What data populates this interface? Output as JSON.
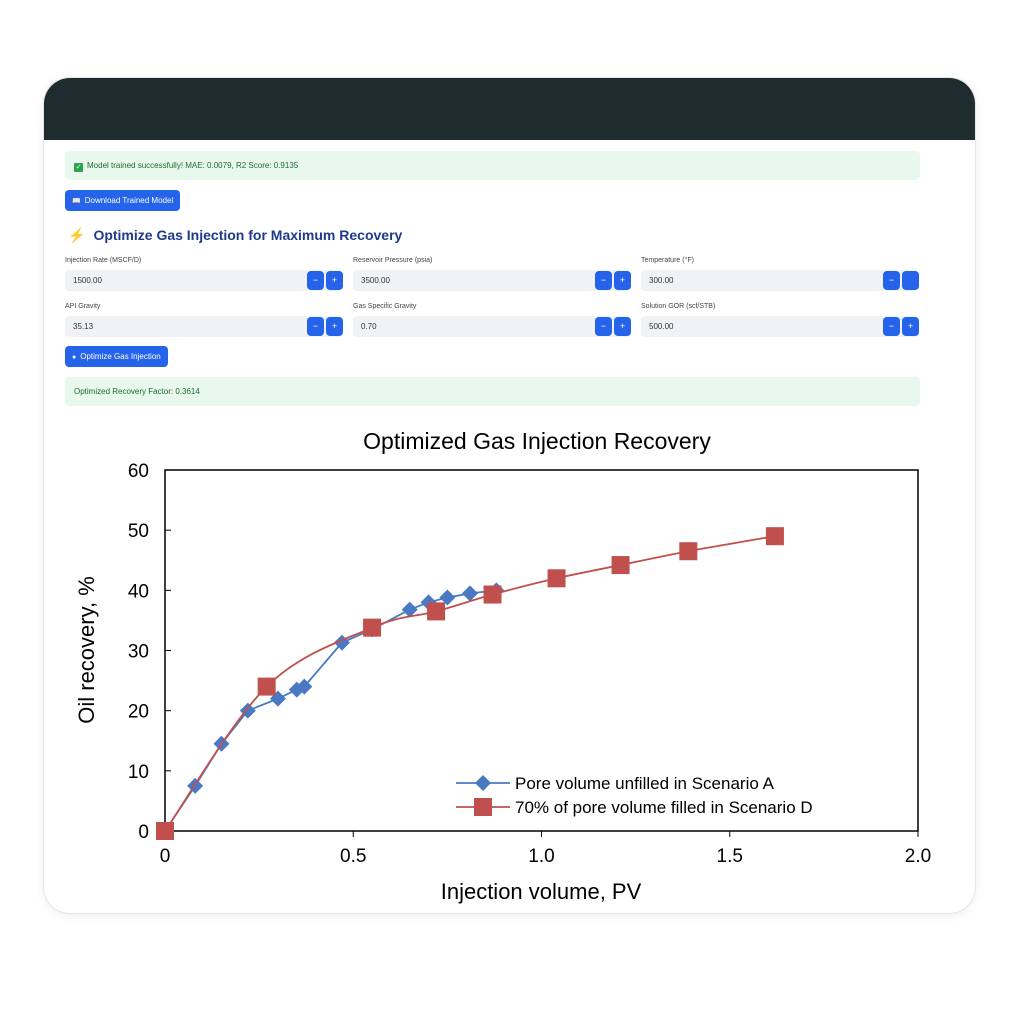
{
  "status": {
    "trained": "Model trained successfully! MAE: 0.0079, R2 Score: 0.9135",
    "check_icon": "✓"
  },
  "download_button": {
    "label": "Download Trained Model",
    "icon": "📖"
  },
  "section": {
    "title": "Optimize Gas Injection for Maximum Recovery",
    "icon": "⚡"
  },
  "inputs": [
    {
      "label": "Injection Rate (MSCF/D)",
      "value": "1500.00"
    },
    {
      "label": "Reservoir Pressure (psia)",
      "value": "3500.00"
    },
    {
      "label": "Temperature (°F)",
      "value": "300.00"
    },
    {
      "label": "API Gravity",
      "value": "35.13"
    },
    {
      "label": "Gas Specific Gravity",
      "value": "0.70"
    },
    {
      "label": "Solution GOR (scf/STB)",
      "value": "500.00"
    }
  ],
  "stepper": {
    "minus": "−",
    "plus": "+"
  },
  "optimize_button": {
    "label": "Optimize Gas Injection",
    "icon": "●"
  },
  "result": {
    "text": "Optimized Recovery Factor: 0.3614"
  },
  "colors": {
    "header": "#1e2b2f",
    "accent": "#2563eb",
    "series_a": "#4a79c4",
    "series_d": "#c0504d"
  },
  "chart_data": {
    "type": "line",
    "title": "Optimized Gas Injection Recovery",
    "xlabel": "Injection volume, PV",
    "ylabel": "Oil recovery, %",
    "xlim": [
      0,
      2.0
    ],
    "ylim": [
      0,
      60
    ],
    "xticks": [
      "0",
      "0.5",
      "1.0",
      "1.5",
      "2.0"
    ],
    "yticks": [
      "0",
      "10",
      "20",
      "30",
      "40",
      "50",
      "60"
    ],
    "legend_position": "bottom-right",
    "grid": false,
    "series": [
      {
        "name": "Pore volume unfilled in Scenario A",
        "marker": "diamond",
        "color": "#4a79c4",
        "x": [
          0,
          0.08,
          0.15,
          0.22,
          0.3,
          0.35,
          0.37,
          0.47,
          0.55,
          0.65,
          0.7,
          0.75,
          0.81,
          0.88
        ],
        "y": [
          0,
          7.5,
          14.5,
          20,
          22,
          23.5,
          24,
          31.3,
          33.5,
          36.8,
          38,
          38.8,
          39.5,
          40
        ]
      },
      {
        "name": "70% of pore volume filled in Scenario D",
        "marker": "square",
        "color": "#c0504d",
        "smooth": true,
        "x": [
          0,
          0.27,
          0.55,
          0.72,
          0.87,
          1.04,
          1.21,
          1.39,
          1.62
        ],
        "y": [
          0,
          24,
          33.8,
          36.5,
          39.3,
          42,
          44.2,
          46.5,
          49
        ]
      }
    ]
  }
}
